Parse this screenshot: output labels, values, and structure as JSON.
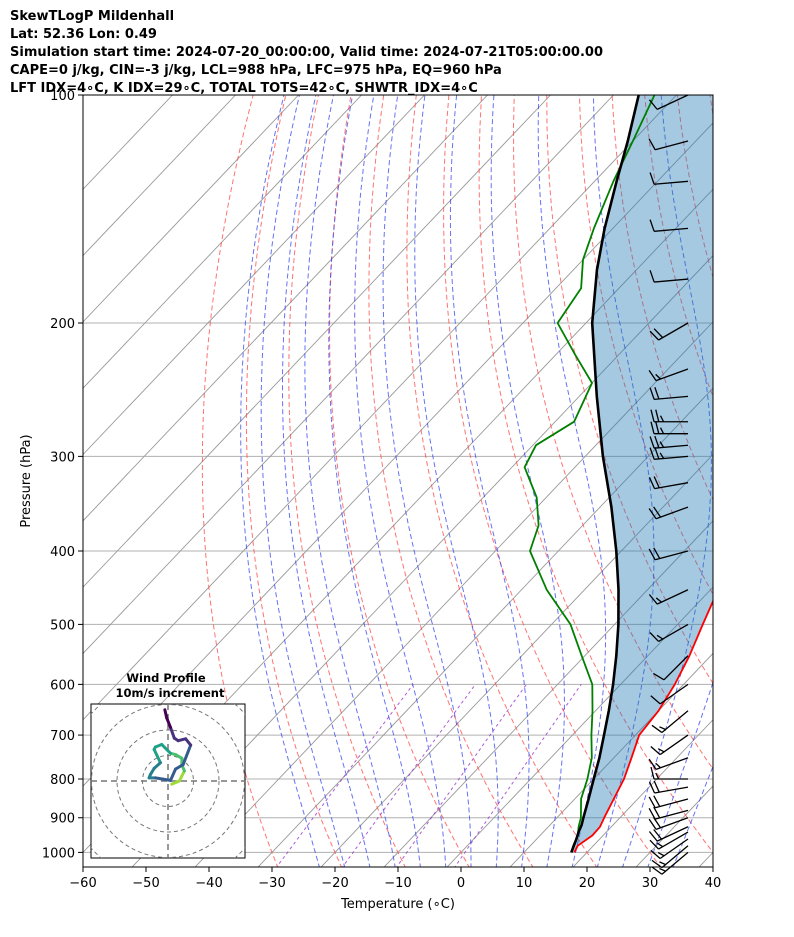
{
  "header": {
    "line1": "SkewTLogP Mildenhall",
    "line2": "Lat: 52.36   Lon: 0.49",
    "line3": "Simulation start time: 2024-07-20_00:00:00, Valid time: 2024-07-21T05:00:00.00",
    "line4": "CAPE=0 j/kg, CIN=-3 j/kg, LCL=988 hPa, LFC=975 hPa, EQ=960 hPa",
    "line5": "LFT IDX=4∘C, K IDX=29∘C, TOTAL TOTS=42∘C, SHWTR_IDX=4∘C"
  },
  "chart_data": {
    "type": "skewt",
    "xlabel": "Temperature (∘C)",
    "ylabel": "Pressure (hPa)",
    "xlim": [
      -60,
      40
    ],
    "ylim": [
      1050,
      100
    ],
    "y_log_scale": true,
    "grid": true,
    "x_ticks": [
      -60,
      -50,
      -40,
      -30,
      -20,
      -10,
      0,
      10,
      20,
      30,
      40
    ],
    "x_tick_labels": [
      "−60",
      "−50",
      "−40",
      "−30",
      "−20",
      "−10",
      "0",
      "10",
      "20",
      "30",
      "40"
    ],
    "y_ticks": [
      1000,
      900,
      800,
      700,
      600,
      500,
      400,
      300,
      200,
      100
    ],
    "y_tick_labels": [
      "1000",
      "900",
      "800",
      "700",
      "600",
      "500",
      "400",
      "300",
      "200",
      "100"
    ],
    "colors": {
      "temperature": "#ff0000",
      "dewpoint": "#008000",
      "parcel": "#000000",
      "cape_fill": "#1f77b4",
      "dry_adiabats": "#ff4444",
      "moist_adiabats": "#3344ee",
      "mixing_ratio": "#9933cc",
      "isotherms": "#999999"
    },
    "series": [
      {
        "name": "temperature",
        "pressure": [
          1000,
          980,
          950,
          925,
          900,
          850,
          800,
          750,
          700,
          650,
          600,
          550,
          500,
          450,
          400,
          370,
          340,
          300,
          270,
          250,
          230,
          210,
          200,
          185,
          170,
          150,
          135,
          120,
          110,
          100
        ],
        "values": [
          18,
          17.5,
          18.3,
          18.2,
          17.5,
          16.2,
          14.8,
          12.8,
          10.6,
          10.0,
          8.6,
          6.6,
          4.0,
          1.2,
          -2.8,
          -7.6,
          -11.8,
          -15.2,
          -18.6,
          -21.6,
          -25.6,
          -28.6,
          -33.6,
          -39.0,
          -44.0,
          -51.0,
          -56.5,
          -61.5,
          -64.0,
          -66.0
        ]
      },
      {
        "name": "dewpoint",
        "pressure": [
          1000,
          980,
          950,
          925,
          900,
          850,
          800,
          750,
          700,
          650,
          600,
          550,
          500,
          450,
          400,
          370,
          340,
          310,
          290,
          270,
          240,
          220,
          200,
          180,
          165,
          150,
          130,
          115,
          100
        ],
        "values": [
          17.5,
          16.8,
          16.0,
          14.8,
          13.8,
          11.0,
          9.0,
          6.5,
          3.0,
          -0.5,
          -4.5,
          -10.5,
          -17.0,
          -26.0,
          -34.5,
          -37.0,
          -41.5,
          -48.0,
          -49.5,
          -47.0,
          -50.0,
          -57.0,
          -64.5,
          -66.0,
          -70.0,
          -73.0,
          -77.0,
          -80.0,
          -83.5
        ]
      },
      {
        "name": "parcel",
        "pressure": [
          1000,
          980,
          960,
          940,
          920,
          900,
          850,
          800,
          750,
          700,
          650,
          600,
          550,
          500,
          450,
          400,
          350,
          300,
          250,
          200,
          170,
          150,
          130,
          115,
          100
        ],
        "values": [
          17.5,
          16.9,
          16.3,
          15.6,
          15.0,
          14.2,
          12.2,
          10.0,
          7.7,
          5.0,
          2.1,
          -1.2,
          -5.0,
          -9.4,
          -14.6,
          -20.8,
          -28.2,
          -37.2,
          -47.2,
          -59.0,
          -66.3,
          -71.3,
          -76.5,
          -80.8,
          -86.0
        ]
      }
    ],
    "wind_barbs": {
      "pressure": [
        1000,
        980,
        960,
        940,
        925,
        900,
        880,
        850,
        820,
        800,
        750,
        700,
        650,
        600,
        550,
        500,
        450,
        400,
        350,
        325,
        300,
        290,
        280,
        270,
        250,
        230,
        200,
        175,
        150,
        130,
        115,
        100
      ],
      "speed_kt": [
        15,
        15,
        15,
        15,
        20,
        20,
        20,
        20,
        20,
        15,
        15,
        15,
        15,
        10,
        10,
        15,
        15,
        20,
        20,
        20,
        25,
        25,
        25,
        25,
        20,
        15,
        20,
        10,
        10,
        10,
        10,
        10
      ],
      "direction_deg": [
        230,
        230,
        235,
        240,
        245,
        250,
        255,
        255,
        260,
        270,
        250,
        235,
        230,
        235,
        225,
        240,
        245,
        255,
        250,
        260,
        265,
        265,
        270,
        270,
        265,
        250,
        240,
        265,
        265,
        265,
        255,
        245
      ]
    }
  },
  "inset": {
    "title": "Wind Profile",
    "subtitle": "10m/s increment",
    "hodograph": {
      "u": [
        0.6,
        1.8,
        2.6,
        2.2,
        2.2,
        1.2,
        0.4,
        -1.0,
        -2.0,
        -2.2,
        -1.2,
        -2.2,
        -2.8,
        -3.0,
        -2.0,
        -0.8,
        0.4,
        1.2,
        2.4,
        3.6,
        2.8,
        1.6,
        1.0,
        0.4,
        -0.2,
        -0.5
      ],
      "v": [
        -0.5,
        0.0,
        1.6,
        2.6,
        3.6,
        4.2,
        4.4,
        5.8,
        5.4,
        5.0,
        2.9,
        2.0,
        1.0,
        0.5,
        0.5,
        0.3,
        0.1,
        1.9,
        2.6,
        5.7,
        6.7,
        6.4,
        6.8,
        8.5,
        10.0,
        11.3
      ]
    }
  }
}
